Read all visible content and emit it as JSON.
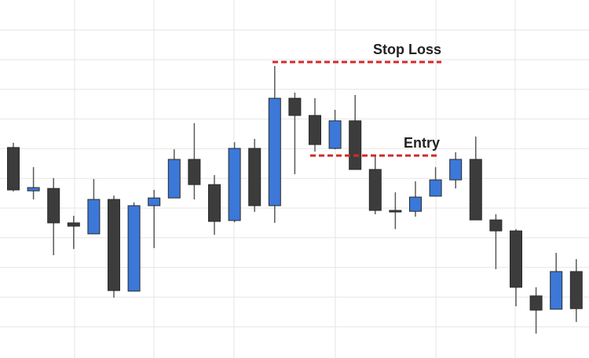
{
  "chart_data": {
    "type": "candlestick",
    "open": [
      7.04,
      5.58,
      5.66,
      4.5,
      4.13,
      5.29,
      2.2,
      5.08,
      5.34,
      6.64,
      5.79,
      4.58,
      7.01,
      5.08,
      8.7,
      8.12,
      7.01,
      7.94,
      6.3,
      4.92,
      4.89,
      5.4,
      5.95,
      6.64,
      4.6,
      4.23,
      2.04,
      1.59,
      2.86
    ],
    "high": [
      7.2,
      6.38,
      6.01,
      4.74,
      5.98,
      5.42,
      5.19,
      5.61,
      6.98,
      7.86,
      6.11,
      7.22,
      7.33,
      9.79,
      8.89,
      8.7,
      8.31,
      8.81,
      6.77,
      5.53,
      5.9,
      6.38,
      6.88,
      7.41,
      4.79,
      4.29,
      2.33,
      3.49,
      3.28
    ],
    "low": [
      5.56,
      5.29,
      3.41,
      3.62,
      4.13,
      1.98,
      2.2,
      3.65,
      5.34,
      5.29,
      4.1,
      4.52,
      4.87,
      4.5,
      6.14,
      6.9,
      6.98,
      6.3,
      4.79,
      4.29,
      4.71,
      5.4,
      5.66,
      4.6,
      2.94,
      1.69,
      0.77,
      1.59,
      1.16
    ],
    "close": [
      5.61,
      5.69,
      4.5,
      4.39,
      5.29,
      2.22,
      5.08,
      5.34,
      6.64,
      5.79,
      4.55,
      7.01,
      5.08,
      8.7,
      8.12,
      7.14,
      7.94,
      6.3,
      4.92,
      4.89,
      5.37,
      5.95,
      6.64,
      4.6,
      4.23,
      2.33,
      1.56,
      2.86,
      1.61
    ],
    "up_color": "#3b78d8",
    "down_color": "#3c3c3c",
    "wick_color": "#5a5a5a",
    "ylim": [
      0,
      12
    ],
    "yticks": [
      1,
      2,
      3,
      4,
      5,
      6,
      7,
      8,
      9,
      10,
      11
    ],
    "grid": true,
    "annotations": [
      {
        "text": "Stop Loss",
        "value": 9.92,
        "color": "#d42a2a"
      },
      {
        "text": "Entry",
        "value": 6.77,
        "color": "#d42a2a"
      }
    ]
  }
}
